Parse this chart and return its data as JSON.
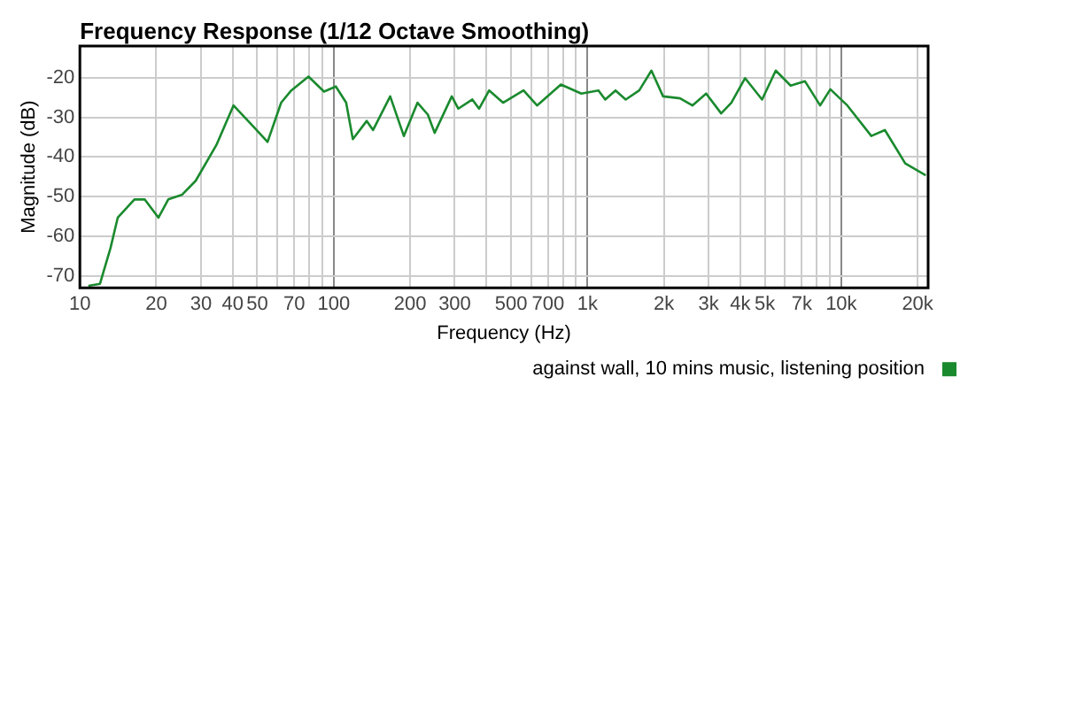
{
  "chart_data": {
    "type": "line",
    "title": "Frequency Response (1/12 Octave Smoothing)",
    "xlabel": "Frequency (Hz)",
    "ylabel": "Magnitude (dB)",
    "log": "x",
    "grid": true,
    "legend": "bottom right",
    "marker": "none",
    "line_style": "solid",
    "xlim": [
      10,
      22000
    ],
    "ylim": [
      -73,
      -12
    ],
    "xticks": [
      10,
      20,
      30,
      40,
      50,
      {
        "value": 60,
        "label": null
      },
      70,
      {
        "value": 80,
        "label": null
      },
      {
        "value": 90,
        "label": null
      },
      100,
      200,
      300,
      {
        "value": 400,
        "label": null
      },
      500,
      {
        "value": 600,
        "label": null
      },
      700,
      {
        "value": 800,
        "label": null
      },
      {
        "value": 900,
        "label": null
      },
      {
        "value": 1000,
        "label": "1k"
      },
      {
        "value": 2000,
        "label": "2k"
      },
      {
        "value": 3000,
        "label": "3k"
      },
      {
        "value": 4000,
        "label": "4k"
      },
      {
        "value": 5000,
        "label": "5k"
      },
      {
        "value": 6000,
        "label": null
      },
      {
        "value": 7000,
        "label": "7k"
      },
      {
        "value": 8000,
        "label": null
      },
      {
        "value": 9000,
        "label": null
      },
      {
        "value": 10000,
        "label": "10k"
      },
      {
        "value": 20000,
        "label": "20k"
      }
    ],
    "yticks": [
      -70,
      -60,
      -50,
      -40,
      -30,
      -20
    ],
    "x": [
      10.8,
      12,
      13.2,
      14.1,
      16.4,
      18,
      20.4,
      22.3,
      25.3,
      28.6,
      34.5,
      40.3,
      48.4,
      54.9,
      62.1,
      68.1,
      79.6,
      91.6,
      102,
      112,
      119,
      135,
      143,
      167,
      189,
      214,
      235,
      250,
      292,
      310,
      352,
      374,
      410,
      465,
      560,
      633,
      786,
      946,
      1105,
      1175,
      1290,
      1415,
      1600,
      1787,
      1986,
      2317,
      2592,
      2936,
      3364,
      3690,
      4178,
      4877,
      5520,
      6320,
      7200,
      8260,
      9060,
      10570,
      13140,
      14860,
      17870,
      21530
    ],
    "series": [
      {
        "name": "against wall, 10 mins music, listening position",
        "color": "#1a8a2e",
        "values": [
          -72.5,
          -72,
          -63,
          -55.3,
          -50.7,
          -50.7,
          -55.3,
          -50.7,
          -49.5,
          -46,
          -37,
          -27,
          -32.4,
          -36.2,
          -26.3,
          -23.2,
          -19.7,
          -23.5,
          -22.2,
          -26.3,
          -35.5,
          -30.9,
          -33.2,
          -24.7,
          -34.7,
          -26.3,
          -29.3,
          -33.9,
          -24.7,
          -27.8,
          -25.5,
          -27.8,
          -23.2,
          -26.3,
          -23.2,
          -27,
          -21.7,
          -24,
          -23.2,
          -25.5,
          -23.2,
          -25.5,
          -23.2,
          -18.2,
          -24.7,
          -25.2,
          -27,
          -24,
          -29,
          -26.3,
          -20.1,
          -25.5,
          -18.2,
          -22,
          -20.9,
          -27,
          -22.9,
          -27,
          -34.7,
          -33.2,
          -41.6,
          -44.6
        ]
      }
    ]
  }
}
